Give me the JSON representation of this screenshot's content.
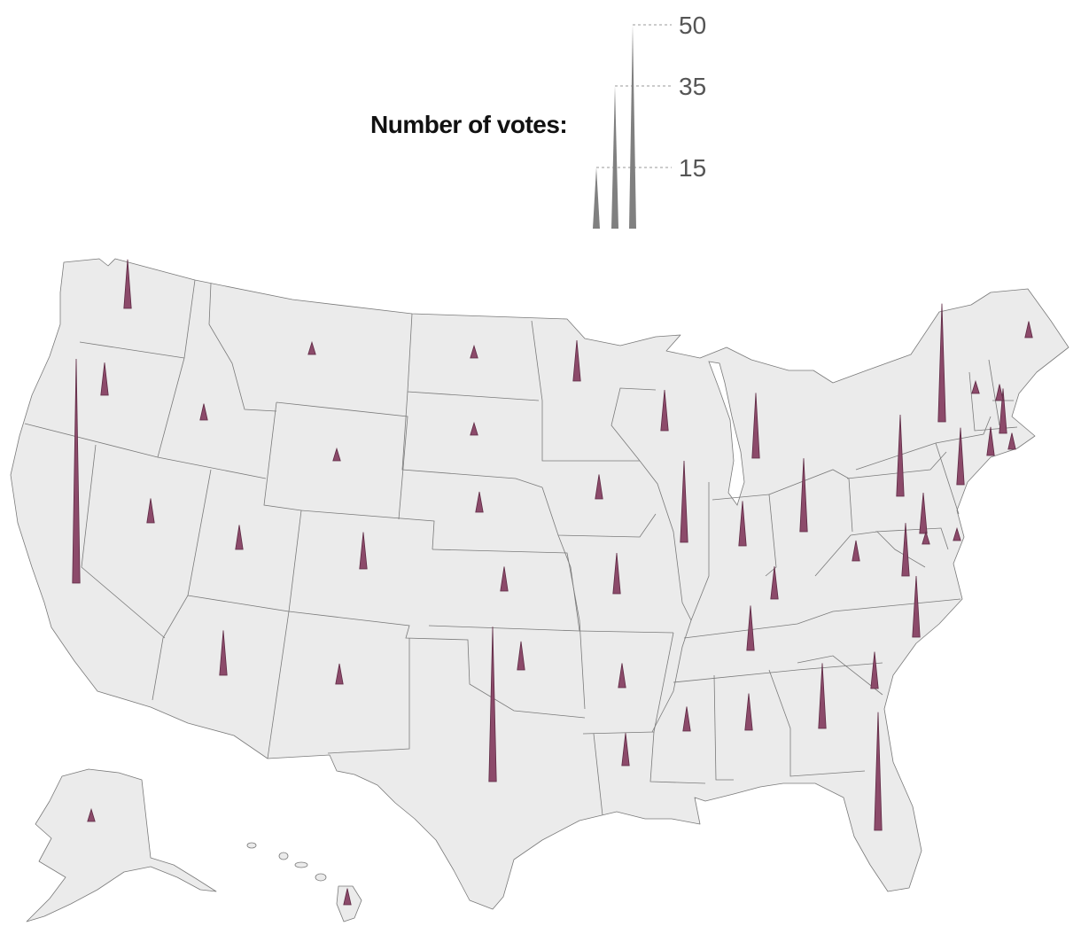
{
  "legend": {
    "title": "Number of votes:",
    "ticks": [
      15,
      35,
      50
    ],
    "spike_color": "#808080"
  },
  "colors": {
    "land": "#ebebeb",
    "border": "#7a7a7a",
    "spike_fill": "#8c4a6a",
    "spike_stroke": "#5e2a44"
  },
  "states": [
    {
      "id": "WA",
      "votes": 12
    },
    {
      "id": "OR",
      "votes": 8
    },
    {
      "id": "CA",
      "votes": 55
    },
    {
      "id": "ID",
      "votes": 4
    },
    {
      "id": "NV",
      "votes": 6
    },
    {
      "id": "MT",
      "votes": 3
    },
    {
      "id": "WY",
      "votes": 3
    },
    {
      "id": "UT",
      "votes": 6
    },
    {
      "id": "AZ",
      "votes": 11
    },
    {
      "id": "CO",
      "votes": 9
    },
    {
      "id": "NM",
      "votes": 5
    },
    {
      "id": "ND",
      "votes": 3
    },
    {
      "id": "SD",
      "votes": 3
    },
    {
      "id": "NE",
      "votes": 5
    },
    {
      "id": "KS",
      "votes": 6
    },
    {
      "id": "OK",
      "votes": 7
    },
    {
      "id": "TX",
      "votes": 38
    },
    {
      "id": "MN",
      "votes": 10
    },
    {
      "id": "IA",
      "votes": 6
    },
    {
      "id": "MO",
      "votes": 10
    },
    {
      "id": "AR",
      "votes": 6
    },
    {
      "id": "LA",
      "votes": 8
    },
    {
      "id": "WI",
      "votes": 10
    },
    {
      "id": "IL",
      "votes": 20
    },
    {
      "id": "MI",
      "votes": 16
    },
    {
      "id": "IN",
      "votes": 11
    },
    {
      "id": "OH",
      "votes": 18
    },
    {
      "id": "KY",
      "votes": 8
    },
    {
      "id": "TN",
      "votes": 11
    },
    {
      "id": "MS",
      "votes": 6
    },
    {
      "id": "AL",
      "votes": 9
    },
    {
      "id": "GA",
      "votes": 16
    },
    {
      "id": "FL",
      "votes": 29
    },
    {
      "id": "SC",
      "votes": 9
    },
    {
      "id": "NC",
      "votes": 15
    },
    {
      "id": "VA",
      "votes": 13
    },
    {
      "id": "WV",
      "votes": 5
    },
    {
      "id": "PA",
      "votes": 20
    },
    {
      "id": "NY",
      "votes": 29
    },
    {
      "id": "MD",
      "votes": 10
    },
    {
      "id": "DE",
      "votes": 3
    },
    {
      "id": "DC",
      "votes": 3
    },
    {
      "id": "NJ",
      "votes": 14
    },
    {
      "id": "CT",
      "votes": 7
    },
    {
      "id": "RI",
      "votes": 4
    },
    {
      "id": "MA",
      "votes": 11
    },
    {
      "id": "VT",
      "votes": 3
    },
    {
      "id": "NH",
      "votes": 4
    },
    {
      "id": "ME",
      "votes": 4
    },
    {
      "id": "AK",
      "votes": 3
    },
    {
      "id": "HI",
      "votes": 4
    }
  ]
}
